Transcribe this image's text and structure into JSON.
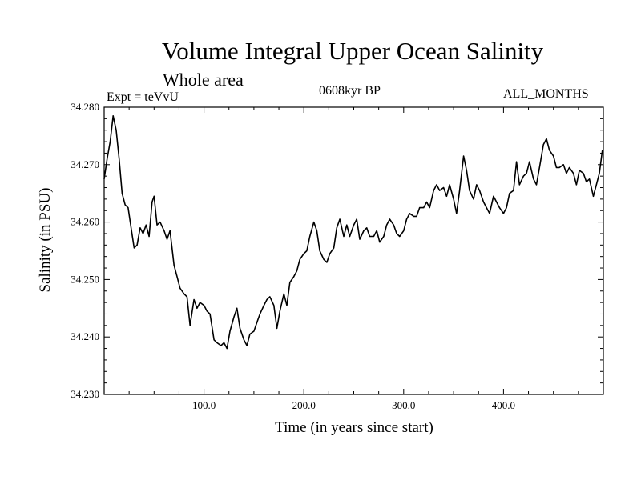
{
  "header": {
    "title": "Volume Integral Upper Ocean Salinity",
    "subtitle": "Whole area",
    "experiment": "Expt = teVvU",
    "period": "0608kyr BP",
    "months": "ALL_MONTHS"
  },
  "chart_data": {
    "type": "line",
    "title": "Volume Integral Upper Ocean Salinity",
    "xlabel": "Time (in years since start)",
    "ylabel": "Salinity (in PSU)",
    "xlim": [
      0,
      500
    ],
    "ylim": [
      34.23,
      34.28
    ],
    "x_ticks": [
      100,
      200,
      300,
      400
    ],
    "x_tick_labels": [
      "100.0",
      "200.0",
      "300.0",
      "400.0"
    ],
    "y_ticks": [
      34.23,
      34.24,
      34.25,
      34.26,
      34.27,
      34.28
    ],
    "y_tick_labels": [
      "34.230",
      "34.240",
      "34.250",
      "34.260",
      "34.270",
      "34.280"
    ],
    "grid": false,
    "color": "#000000",
    "series": [
      {
        "x": [
          0,
          3,
          6,
          9,
          12,
          15,
          18,
          21,
          24,
          27,
          30,
          33,
          36,
          39,
          42,
          45,
          48,
          50,
          53,
          56,
          60,
          63,
          66,
          70,
          73,
          76,
          80,
          83,
          86,
          90,
          93,
          96,
          100,
          103,
          106,
          110,
          113,
          117,
          120,
          123,
          126,
          130,
          133,
          136,
          140,
          143,
          146,
          150,
          153,
          156,
          160,
          163,
          166,
          170,
          173,
          176,
          180,
          183,
          186,
          190,
          193,
          196,
          200,
          203,
          206,
          210,
          213,
          216,
          220,
          223,
          226,
          230,
          233,
          236,
          240,
          243,
          246,
          250,
          253,
          256,
          260,
          263,
          266,
          270,
          273,
          276,
          280,
          283,
          286,
          290,
          293,
          296,
          300,
          303,
          306,
          310,
          313,
          316,
          320,
          323,
          326,
          330,
          333,
          336,
          340,
          343,
          346,
          350,
          353,
          356,
          360,
          363,
          366,
          370,
          373,
          376,
          380,
          383,
          386,
          390,
          393,
          396,
          400,
          403,
          406,
          410,
          413,
          416,
          420,
          423,
          426,
          430,
          433,
          436,
          440,
          443,
          446,
          450,
          453,
          456,
          460,
          463,
          466,
          470,
          473,
          476,
          480,
          483,
          486,
          490,
          493,
          496,
          499
        ],
        "y": [
          34.2675,
          34.271,
          34.274,
          34.2785,
          34.276,
          34.271,
          34.265,
          34.263,
          34.2625,
          34.259,
          34.2555,
          34.256,
          34.259,
          34.258,
          34.2595,
          34.2575,
          34.2635,
          34.2645,
          34.2595,
          34.26,
          34.2585,
          34.257,
          34.2585,
          34.2525,
          34.2505,
          34.2485,
          34.2475,
          34.247,
          34.242,
          34.2465,
          34.245,
          34.246,
          34.2455,
          34.2445,
          34.244,
          34.2395,
          34.239,
          34.2385,
          34.239,
          34.238,
          34.241,
          34.2435,
          34.245,
          34.2415,
          34.2395,
          34.2385,
          34.2405,
          34.241,
          34.2425,
          34.244,
          34.2455,
          34.2465,
          34.247,
          34.2455,
          34.2415,
          34.2445,
          34.2475,
          34.2455,
          34.2495,
          34.2505,
          34.2515,
          34.2535,
          34.2545,
          34.255,
          34.2575,
          34.26,
          34.2585,
          34.255,
          34.2535,
          34.253,
          34.2545,
          34.2555,
          34.259,
          34.2605,
          34.2575,
          34.2595,
          34.2575,
          34.2595,
          34.2605,
          34.257,
          34.2585,
          34.259,
          34.2575,
          34.2575,
          34.2585,
          34.2565,
          34.2575,
          34.2595,
          34.2605,
          34.2595,
          34.258,
          34.2575,
          34.2585,
          34.2605,
          34.2615,
          34.261,
          34.261,
          34.2625,
          34.2625,
          34.2635,
          34.2625,
          34.2655,
          34.2665,
          34.2655,
          34.266,
          34.2645,
          34.2665,
          34.264,
          34.2615,
          34.2655,
          34.2715,
          34.269,
          34.2655,
          34.264,
          34.2665,
          34.2655,
          34.2635,
          34.2625,
          34.2615,
          34.2645,
          34.2635,
          34.2625,
          34.2615,
          34.2625,
          34.265,
          34.2655,
          34.2705,
          34.2665,
          34.268,
          34.2685,
          34.2705,
          34.2675,
          34.2665,
          34.2695,
          34.2735,
          34.2745,
          34.2725,
          34.2715,
          34.2695,
          34.2695,
          34.27,
          34.2685,
          34.2695,
          34.2685,
          34.2665,
          34.269,
          34.2685,
          34.267,
          34.2675,
          34.2645,
          34.2665,
          34.2685,
          34.2725
        ]
      }
    ]
  }
}
